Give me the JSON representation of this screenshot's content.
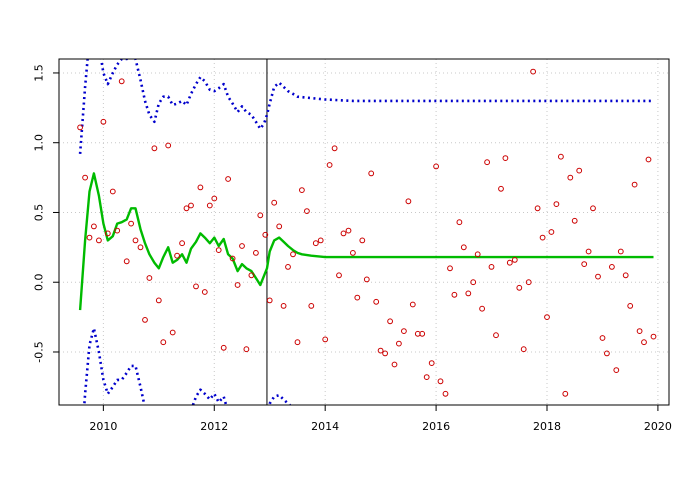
{
  "chart_data": {
    "type": "scatter",
    "title": "",
    "xlabel": "",
    "ylabel": "",
    "xlim": [
      2009.2,
      2020.2
    ],
    "ylim": [
      -0.88,
      1.6
    ],
    "x_ticks": [
      2010,
      2012,
      2014,
      2016,
      2018,
      2020
    ],
    "x_tick_labels": [
      "2010",
      "2012",
      "2014",
      "2016",
      "2018",
      "2020"
    ],
    "y_ticks": [
      -0.5,
      0.0,
      0.5,
      1.0,
      1.5
    ],
    "y_tick_labels": [
      "-0.5",
      "0.0",
      "0.5",
      "1.0",
      "1.5"
    ],
    "grid": true,
    "vline_x": 2012.95,
    "colors": {
      "points": "#cc0000",
      "fit": "#00bb00",
      "bounds": "#0000cc",
      "grid": "#c8c8c8",
      "axis": "#000000"
    },
    "series": [
      {
        "type": "scatter",
        "points": [
          [
            2009.58,
            1.11
          ],
          [
            2009.67,
            0.75
          ],
          [
            2009.75,
            0.32
          ],
          [
            2009.83,
            0.4
          ],
          [
            2009.92,
            0.3
          ],
          [
            2010.0,
            1.15
          ],
          [
            2010.08,
            0.35
          ],
          [
            2010.17,
            0.65
          ],
          [
            2010.25,
            0.37
          ],
          [
            2010.33,
            1.44
          ],
          [
            2010.42,
            0.15
          ],
          [
            2010.5,
            0.42
          ],
          [
            2010.58,
            0.3
          ],
          [
            2010.67,
            0.25
          ],
          [
            2010.75,
            -0.27
          ],
          [
            2010.83,
            0.03
          ],
          [
            2010.92,
            0.96
          ],
          [
            2011.0,
            -0.13
          ],
          [
            2011.08,
            -0.43
          ],
          [
            2011.17,
            0.98
          ],
          [
            2011.25,
            -0.36
          ],
          [
            2011.33,
            0.19
          ],
          [
            2011.42,
            0.28
          ],
          [
            2011.5,
            0.53
          ],
          [
            2011.58,
            0.55
          ],
          [
            2011.67,
            -0.03
          ],
          [
            2011.75,
            0.68
          ],
          [
            2011.83,
            -0.07
          ],
          [
            2011.92,
            0.55
          ],
          [
            2012.0,
            0.6
          ],
          [
            2012.08,
            0.23
          ],
          [
            2012.17,
            -0.47
          ],
          [
            2012.25,
            0.74
          ],
          [
            2012.33,
            0.17
          ],
          [
            2012.42,
            -0.02
          ],
          [
            2012.5,
            0.26
          ],
          [
            2012.58,
            -0.48
          ],
          [
            2012.67,
            0.05
          ],
          [
            2012.75,
            0.21
          ],
          [
            2012.83,
            0.48
          ],
          [
            2012.92,
            0.34
          ],
          [
            2013.0,
            -0.13
          ],
          [
            2013.08,
            0.57
          ],
          [
            2013.17,
            0.4
          ],
          [
            2013.25,
            -0.17
          ],
          [
            2013.33,
            0.11
          ],
          [
            2013.42,
            0.2
          ],
          [
            2013.5,
            -0.43
          ],
          [
            2013.58,
            0.66
          ],
          [
            2013.67,
            0.51
          ],
          [
            2013.75,
            -0.17
          ],
          [
            2013.83,
            0.28
          ],
          [
            2013.92,
            0.3
          ],
          [
            2014.0,
            -0.41
          ],
          [
            2014.08,
            0.84
          ],
          [
            2014.17,
            0.96
          ],
          [
            2014.25,
            0.05
          ],
          [
            2014.33,
            0.35
          ],
          [
            2014.42,
            0.37
          ],
          [
            2014.5,
            0.21
          ],
          [
            2014.58,
            -0.11
          ],
          [
            2014.67,
            0.3
          ],
          [
            2014.75,
            0.02
          ],
          [
            2014.83,
            0.78
          ],
          [
            2014.92,
            -0.14
          ],
          [
            2015.0,
            -0.49
          ],
          [
            2015.08,
            -0.51
          ],
          [
            2015.17,
            -0.28
          ],
          [
            2015.25,
            -0.59
          ],
          [
            2015.33,
            -0.44
          ],
          [
            2015.42,
            -0.35
          ],
          [
            2015.5,
            0.58
          ],
          [
            2015.58,
            -0.16
          ],
          [
            2015.67,
            -0.37
          ],
          [
            2015.75,
            -0.37
          ],
          [
            2015.83,
            -0.68
          ],
          [
            2015.92,
            -0.58
          ],
          [
            2016.0,
            0.83
          ],
          [
            2016.08,
            -0.71
          ],
          [
            2016.17,
            -0.8
          ],
          [
            2016.25,
            0.1
          ],
          [
            2016.33,
            -0.09
          ],
          [
            2016.42,
            0.43
          ],
          [
            2016.5,
            0.25
          ],
          [
            2016.58,
            -0.08
          ],
          [
            2016.67,
            0.0
          ],
          [
            2016.75,
            0.2
          ],
          [
            2016.83,
            -0.19
          ],
          [
            2016.92,
            0.86
          ],
          [
            2017.0,
            0.11
          ],
          [
            2017.08,
            -0.38
          ],
          [
            2017.17,
            0.67
          ],
          [
            2017.25,
            0.89
          ],
          [
            2017.33,
            0.14
          ],
          [
            2017.42,
            0.16
          ],
          [
            2017.5,
            -0.04
          ],
          [
            2017.58,
            -0.48
          ],
          [
            2017.67,
            0.0
          ],
          [
            2017.75,
            1.51
          ],
          [
            2017.83,
            0.53
          ],
          [
            2017.92,
            0.32
          ],
          [
            2018.0,
            -0.25
          ],
          [
            2018.08,
            0.36
          ],
          [
            2018.17,
            0.56
          ],
          [
            2018.25,
            0.9
          ],
          [
            2018.33,
            -0.8
          ],
          [
            2018.42,
            0.75
          ],
          [
            2018.5,
            0.44
          ],
          [
            2018.58,
            0.8
          ],
          [
            2018.67,
            0.13
          ],
          [
            2018.75,
            0.22
          ],
          [
            2018.83,
            0.53
          ],
          [
            2018.92,
            0.04
          ],
          [
            2019.0,
            -0.4
          ],
          [
            2019.08,
            -0.51
          ],
          [
            2019.17,
            0.11
          ],
          [
            2019.25,
            -0.63
          ],
          [
            2019.33,
            0.22
          ],
          [
            2019.42,
            0.05
          ],
          [
            2019.5,
            -0.17
          ],
          [
            2019.58,
            0.7
          ],
          [
            2019.67,
            -0.35
          ],
          [
            2019.75,
            -0.43
          ],
          [
            2019.83,
            0.88
          ],
          [
            2019.92,
            -0.39
          ]
        ]
      },
      {
        "type": "line",
        "points": [
          [
            2009.58,
            -0.2
          ],
          [
            2009.67,
            0.3
          ],
          [
            2009.75,
            0.65
          ],
          [
            2009.83,
            0.78
          ],
          [
            2009.92,
            0.62
          ],
          [
            2010.0,
            0.42
          ],
          [
            2010.08,
            0.3
          ],
          [
            2010.17,
            0.33
          ],
          [
            2010.25,
            0.42
          ],
          [
            2010.33,
            0.43
          ],
          [
            2010.42,
            0.45
          ],
          [
            2010.5,
            0.53
          ],
          [
            2010.58,
            0.53
          ],
          [
            2010.67,
            0.38
          ],
          [
            2010.75,
            0.28
          ],
          [
            2010.83,
            0.2
          ],
          [
            2010.92,
            0.14
          ],
          [
            2011.0,
            0.1
          ],
          [
            2011.08,
            0.18
          ],
          [
            2011.17,
            0.25
          ],
          [
            2011.25,
            0.14
          ],
          [
            2011.33,
            0.16
          ],
          [
            2011.42,
            0.2
          ],
          [
            2011.5,
            0.14
          ],
          [
            2011.58,
            0.24
          ],
          [
            2011.67,
            0.29
          ],
          [
            2011.75,
            0.35
          ],
          [
            2011.83,
            0.32
          ],
          [
            2011.92,
            0.28
          ],
          [
            2012.0,
            0.32
          ],
          [
            2012.08,
            0.26
          ],
          [
            2012.17,
            0.31
          ],
          [
            2012.25,
            0.2
          ],
          [
            2012.33,
            0.17
          ],
          [
            2012.42,
            0.08
          ],
          [
            2012.5,
            0.13
          ],
          [
            2012.58,
            0.1
          ],
          [
            2012.67,
            0.08
          ],
          [
            2012.75,
            0.03
          ],
          [
            2012.83,
            -0.02
          ],
          [
            2012.9,
            0.05
          ],
          [
            2012.95,
            0.1
          ],
          [
            2013.0,
            0.22
          ],
          [
            2013.08,
            0.3
          ],
          [
            2013.17,
            0.32
          ],
          [
            2013.25,
            0.29
          ],
          [
            2013.33,
            0.26
          ],
          [
            2013.42,
            0.23
          ],
          [
            2013.5,
            0.21
          ],
          [
            2013.58,
            0.2
          ],
          [
            2013.75,
            0.19
          ],
          [
            2014.0,
            0.18
          ],
          [
            2015.0,
            0.18
          ],
          [
            2016.0,
            0.18
          ],
          [
            2017.0,
            0.18
          ],
          [
            2018.0,
            0.18
          ],
          [
            2019.0,
            0.18
          ],
          [
            2019.92,
            0.18
          ]
        ]
      },
      {
        "type": "line",
        "points": [
          [
            2009.58,
            0.92
          ],
          [
            2009.67,
            1.4
          ],
          [
            2009.75,
            1.75
          ],
          [
            2009.83,
            1.85
          ],
          [
            2009.92,
            1.7
          ],
          [
            2010.0,
            1.5
          ],
          [
            2010.08,
            1.42
          ],
          [
            2010.17,
            1.5
          ],
          [
            2010.25,
            1.56
          ],
          [
            2010.33,
            1.6
          ],
          [
            2010.42,
            1.6
          ],
          [
            2010.5,
            1.65
          ],
          [
            2010.58,
            1.6
          ],
          [
            2010.67,
            1.45
          ],
          [
            2010.75,
            1.3
          ],
          [
            2010.83,
            1.2
          ],
          [
            2010.92,
            1.15
          ],
          [
            2011.0,
            1.28
          ],
          [
            2011.08,
            1.33
          ],
          [
            2011.17,
            1.33
          ],
          [
            2011.25,
            1.27
          ],
          [
            2011.33,
            1.28
          ],
          [
            2011.42,
            1.3
          ],
          [
            2011.5,
            1.27
          ],
          [
            2011.58,
            1.35
          ],
          [
            2011.67,
            1.42
          ],
          [
            2011.75,
            1.47
          ],
          [
            2011.83,
            1.44
          ],
          [
            2011.92,
            1.38
          ],
          [
            2012.0,
            1.37
          ],
          [
            2012.08,
            1.39
          ],
          [
            2012.17,
            1.42
          ],
          [
            2012.25,
            1.33
          ],
          [
            2012.33,
            1.28
          ],
          [
            2012.42,
            1.22
          ],
          [
            2012.5,
            1.26
          ],
          [
            2012.58,
            1.22
          ],
          [
            2012.67,
            1.2
          ],
          [
            2012.75,
            1.15
          ],
          [
            2012.83,
            1.1
          ],
          [
            2012.9,
            1.14
          ],
          [
            2012.95,
            1.2
          ],
          [
            2013.0,
            1.28
          ],
          [
            2013.08,
            1.4
          ],
          [
            2013.17,
            1.43
          ],
          [
            2013.25,
            1.4
          ],
          [
            2013.33,
            1.37
          ],
          [
            2013.42,
            1.35
          ],
          [
            2013.5,
            1.33
          ],
          [
            2013.75,
            1.32
          ],
          [
            2014.0,
            1.31
          ],
          [
            2014.5,
            1.3
          ],
          [
            2015.0,
            1.3
          ],
          [
            2016.0,
            1.3
          ],
          [
            2017.0,
            1.3
          ],
          [
            2018.0,
            1.3
          ],
          [
            2019.0,
            1.3
          ],
          [
            2019.92,
            1.3
          ]
        ]
      },
      {
        "type": "line",
        "points": [
          [
            2009.58,
            -1.3
          ],
          [
            2009.67,
            -0.8
          ],
          [
            2009.75,
            -0.45
          ],
          [
            2009.83,
            -0.33
          ],
          [
            2009.92,
            -0.5
          ],
          [
            2010.0,
            -0.7
          ],
          [
            2010.08,
            -0.8
          ],
          [
            2010.17,
            -0.75
          ],
          [
            2010.25,
            -0.7
          ],
          [
            2010.33,
            -0.7
          ],
          [
            2010.42,
            -0.65
          ],
          [
            2010.5,
            -0.6
          ],
          [
            2010.58,
            -0.6
          ],
          [
            2010.67,
            -0.75
          ],
          [
            2010.75,
            -0.9
          ],
          [
            2010.83,
            -1.0
          ],
          [
            2010.92,
            -1.1
          ],
          [
            2011.0,
            -1.1
          ],
          [
            2011.08,
            -1.0
          ],
          [
            2011.17,
            -0.95
          ],
          [
            2011.25,
            -1.05
          ],
          [
            2011.33,
            -1.02
          ],
          [
            2011.42,
            -0.98
          ],
          [
            2011.5,
            -1.02
          ],
          [
            2011.58,
            -0.92
          ],
          [
            2011.67,
            -0.82
          ],
          [
            2011.75,
            -0.77
          ],
          [
            2011.83,
            -0.8
          ],
          [
            2011.92,
            -0.84
          ],
          [
            2012.0,
            -0.8
          ],
          [
            2012.08,
            -0.86
          ],
          [
            2012.17,
            -0.82
          ],
          [
            2012.25,
            -0.93
          ],
          [
            2012.33,
            -0.95
          ],
          [
            2012.42,
            -1.05
          ],
          [
            2012.5,
            -1.0
          ],
          [
            2012.58,
            -1.02
          ],
          [
            2012.67,
            -1.06
          ],
          [
            2012.75,
            -1.1
          ],
          [
            2012.83,
            -1.14
          ],
          [
            2012.9,
            -1.05
          ],
          [
            2012.95,
            -0.97
          ],
          [
            2013.0,
            -0.87
          ],
          [
            2013.08,
            -0.82
          ],
          [
            2013.17,
            -0.81
          ],
          [
            2013.25,
            -0.84
          ],
          [
            2013.33,
            -0.87
          ],
          [
            2013.42,
            -0.9
          ],
          [
            2013.5,
            -0.92
          ],
          [
            2013.75,
            -0.94
          ],
          [
            2014.0,
            -0.95
          ],
          [
            2015.0,
            -0.95
          ],
          [
            2016.0,
            -0.95
          ],
          [
            2017.0,
            -0.95
          ],
          [
            2018.0,
            -0.95
          ],
          [
            2019.0,
            -0.95
          ],
          [
            2019.92,
            -0.95
          ]
        ]
      }
    ]
  }
}
